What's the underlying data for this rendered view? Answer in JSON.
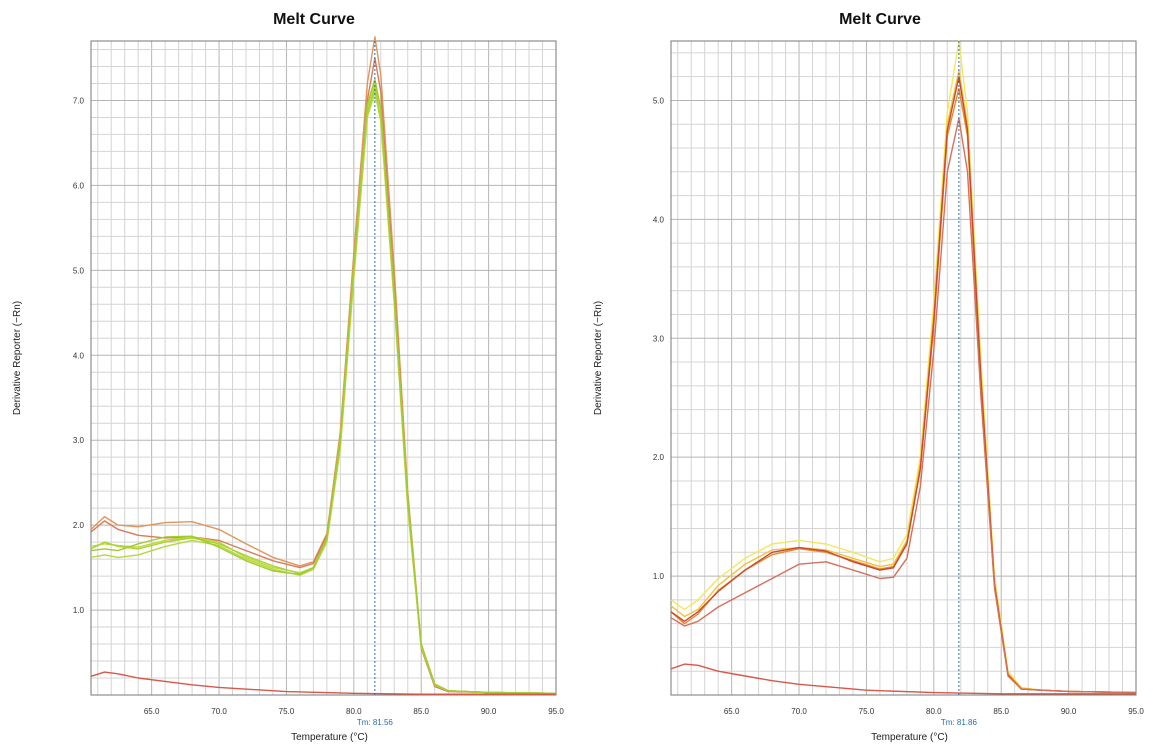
{
  "chart_data": [
    {
      "type": "line",
      "title": "Melt Curve",
      "xlabel": "Temperature (°C)",
      "ylabel": "Derivative Reporter (−Rn)",
      "xlim": [
        60.5,
        95.0
      ],
      "ylim": [
        0.0,
        7.7
      ],
      "x_ticks": [
        65.0,
        70.0,
        75.0,
        80.0,
        85.0,
        90.0,
        95.0
      ],
      "y_ticks": [
        1.0,
        2.0,
        3.0,
        4.0,
        5.0,
        6.0,
        7.0
      ],
      "x_tick_labels": [
        "65.0",
        "70.0",
        "75.0",
        "80.0",
        "85.0",
        "90.0",
        "95.0"
      ],
      "y_tick_labels": [
        "1.0",
        "2.0",
        "3.0",
        "4.0",
        "5.0",
        "6.0",
        "7.0"
      ],
      "grid": true,
      "tm_value": 81.56,
      "tm_label": "Tm: 81.56",
      "series": [
        {
          "color": "#e0955a",
          "x": [
            60.5,
            61.5,
            62.5,
            64,
            66,
            68,
            70,
            72,
            74,
            76,
            77,
            78,
            79,
            80,
            81,
            81.56,
            82,
            83,
            84,
            85,
            86,
            87,
            90,
            95
          ],
          "y": [
            1.95,
            2.1,
            2.0,
            1.98,
            2.03,
            2.04,
            1.95,
            1.78,
            1.62,
            1.52,
            1.57,
            1.9,
            3.1,
            5.2,
            7.2,
            7.75,
            7.3,
            5.0,
            2.4,
            0.6,
            0.12,
            0.05,
            0.03,
            0.02
          ]
        },
        {
          "color": "#d97a5a",
          "x": [
            60.5,
            61.5,
            62.5,
            64,
            66,
            68,
            70,
            72,
            74,
            76,
            77,
            78,
            79,
            80,
            81,
            81.56,
            82,
            83,
            84,
            85,
            86,
            87,
            90,
            95
          ],
          "y": [
            1.92,
            2.05,
            1.95,
            1.88,
            1.85,
            1.86,
            1.82,
            1.7,
            1.58,
            1.5,
            1.55,
            1.88,
            3.0,
            5.0,
            7.0,
            7.5,
            7.1,
            4.8,
            2.3,
            0.55,
            0.1,
            0.04,
            0.03,
            0.02
          ]
        },
        {
          "color": "#c2d63a",
          "x": [
            60.5,
            61.5,
            62.5,
            64,
            66,
            68,
            70,
            72,
            74,
            76,
            77,
            78,
            79,
            80,
            81,
            81.56,
            82,
            83,
            84,
            85,
            86,
            87,
            90,
            95
          ],
          "y": [
            1.75,
            1.78,
            1.76,
            1.74,
            1.82,
            1.86,
            1.8,
            1.62,
            1.5,
            1.44,
            1.5,
            1.85,
            3.0,
            5.0,
            6.9,
            7.2,
            6.9,
            4.7,
            2.3,
            0.6,
            0.13,
            0.05,
            0.03,
            0.02
          ]
        },
        {
          "color": "#a8d434",
          "x": [
            60.5,
            61.5,
            62.5,
            64,
            66,
            68,
            70,
            72,
            74,
            76,
            77,
            78,
            79,
            80,
            81,
            81.56,
            82,
            83,
            84,
            85,
            86,
            87,
            90,
            95
          ],
          "y": [
            1.72,
            1.8,
            1.75,
            1.72,
            1.8,
            1.85,
            1.78,
            1.64,
            1.52,
            1.43,
            1.5,
            1.82,
            2.95,
            4.95,
            6.85,
            7.15,
            6.8,
            4.65,
            2.25,
            0.58,
            0.12,
            0.05,
            0.03,
            0.02
          ]
        },
        {
          "color": "#b6d83e",
          "x": [
            60.5,
            61.5,
            62.5,
            64,
            66,
            68,
            70,
            72,
            74,
            76,
            77,
            78,
            79,
            80,
            81,
            81.56,
            82,
            83,
            84,
            85,
            86,
            87,
            90,
            95
          ],
          "y": [
            1.62,
            1.65,
            1.62,
            1.65,
            1.75,
            1.82,
            1.76,
            1.6,
            1.48,
            1.41,
            1.48,
            1.8,
            2.9,
            4.9,
            6.8,
            7.1,
            6.75,
            4.6,
            2.2,
            0.57,
            0.12,
            0.05,
            0.03,
            0.02
          ]
        },
        {
          "color": "#9fcc30",
          "x": [
            60.5,
            61.5,
            62.5,
            64,
            66,
            68,
            70,
            72,
            74,
            76,
            77,
            78,
            79,
            80,
            81,
            81.56,
            82,
            83,
            84,
            85,
            86,
            87,
            90,
            95
          ],
          "y": [
            1.7,
            1.72,
            1.7,
            1.78,
            1.86,
            1.87,
            1.74,
            1.58,
            1.46,
            1.42,
            1.5,
            1.85,
            3.0,
            5.05,
            6.95,
            7.25,
            6.9,
            4.7,
            2.3,
            0.6,
            0.13,
            0.05,
            0.03,
            0.02
          ]
        },
        {
          "color": "#d9574a",
          "x": [
            60.5,
            61.5,
            62.5,
            64,
            66,
            68,
            70,
            75,
            80,
            85,
            90,
            95
          ],
          "y": [
            0.22,
            0.27,
            0.25,
            0.2,
            0.16,
            0.12,
            0.09,
            0.04,
            0.02,
            0.01,
            0.01,
            0.01
          ]
        }
      ]
    },
    {
      "type": "line",
      "title": "Melt Curve",
      "xlabel": "Temperature (°C)",
      "ylabel": "Derivative Reporter (−Rn)",
      "xlim": [
        60.5,
        95.0
      ],
      "ylim": [
        0.0,
        5.5
      ],
      "x_ticks": [
        65.0,
        70.0,
        75.0,
        80.0,
        85.0,
        90.0,
        95.0
      ],
      "y_ticks": [
        1.0,
        2.0,
        3.0,
        4.0,
        5.0
      ],
      "x_tick_labels": [
        "65.0",
        "70.0",
        "75.0",
        "80.0",
        "85.0",
        "90.0",
        "95.0"
      ],
      "y_tick_labels": [
        "1.0",
        "2.0",
        "3.0",
        "4.0",
        "5.0"
      ],
      "grid": true,
      "tm_value": 81.86,
      "tm_label": "Tm: 81.86",
      "series": [
        {
          "color": "#f0e860",
          "x": [
            60.5,
            61.5,
            62.5,
            64,
            66,
            68,
            70,
            72,
            74,
            76,
            77,
            78,
            79,
            80,
            81,
            81.86,
            82.5,
            83.5,
            84.5,
            85.5,
            86.5,
            88,
            90,
            95
          ],
          "y": [
            0.8,
            0.72,
            0.8,
            0.98,
            1.15,
            1.27,
            1.3,
            1.27,
            1.2,
            1.12,
            1.15,
            1.35,
            2.0,
            3.3,
            4.9,
            5.5,
            4.9,
            2.8,
            1.0,
            0.2,
            0.06,
            0.04,
            0.03,
            0.02
          ]
        },
        {
          "color": "#f2c23a",
          "x": [
            60.5,
            61.5,
            62.5,
            64,
            66,
            68,
            70,
            72,
            74,
            76,
            77,
            78,
            79,
            80,
            81,
            81.86,
            82.5,
            83.5,
            84.5,
            85.5,
            86.5,
            88,
            90,
            95
          ],
          "y": [
            0.75,
            0.66,
            0.72,
            0.92,
            1.1,
            1.22,
            1.24,
            1.22,
            1.15,
            1.08,
            1.1,
            1.3,
            1.95,
            3.2,
            4.8,
            5.25,
            4.8,
            2.7,
            0.95,
            0.18,
            0.06,
            0.04,
            0.03,
            0.02
          ]
        },
        {
          "color": "#e7892e",
          "x": [
            60.5,
            61.5,
            62.5,
            64,
            66,
            68,
            70,
            72,
            74,
            76,
            77,
            78,
            79,
            80,
            81,
            81.86,
            82.5,
            83.5,
            84.5,
            85.5,
            86.5,
            88,
            90,
            95
          ],
          "y": [
            0.7,
            0.6,
            0.68,
            0.88,
            1.05,
            1.18,
            1.23,
            1.2,
            1.13,
            1.06,
            1.08,
            1.28,
            1.9,
            3.1,
            4.7,
            5.1,
            4.7,
            2.6,
            0.92,
            0.17,
            0.05,
            0.04,
            0.03,
            0.02
          ]
        },
        {
          "color": "#c9492e",
          "x": [
            60.5,
            61.5,
            62.5,
            64,
            66,
            68,
            70,
            72,
            74,
            76,
            77,
            78,
            79,
            80,
            81,
            81.86,
            82.5,
            83.5,
            84.5,
            85.5,
            86.5,
            88,
            90,
            95
          ],
          "y": [
            0.7,
            0.62,
            0.7,
            0.87,
            1.05,
            1.2,
            1.24,
            1.21,
            1.12,
            1.05,
            1.07,
            1.27,
            1.9,
            3.15,
            4.75,
            5.2,
            4.75,
            2.65,
            0.93,
            0.17,
            0.05,
            0.04,
            0.03,
            0.02
          ]
        },
        {
          "color": "#d6705a",
          "x": [
            60.5,
            61.5,
            62.5,
            64,
            66,
            68,
            70,
            72,
            74,
            76,
            77,
            78,
            79,
            80,
            81,
            81.86,
            82.5,
            83.5,
            84.5,
            85.5,
            86.5,
            88,
            90,
            95
          ],
          "y": [
            0.65,
            0.58,
            0.62,
            0.74,
            0.86,
            0.98,
            1.1,
            1.12,
            1.05,
            0.98,
            0.99,
            1.15,
            1.75,
            2.9,
            4.4,
            4.85,
            4.4,
            2.5,
            0.9,
            0.16,
            0.05,
            0.04,
            0.03,
            0.02
          ]
        },
        {
          "color": "#d9574a",
          "x": [
            60.5,
            61.5,
            62.5,
            64,
            66,
            68,
            70,
            75,
            80,
            85,
            90,
            95
          ],
          "y": [
            0.22,
            0.26,
            0.25,
            0.2,
            0.16,
            0.12,
            0.09,
            0.04,
            0.02,
            0.01,
            0.01,
            0.01
          ]
        }
      ]
    }
  ]
}
